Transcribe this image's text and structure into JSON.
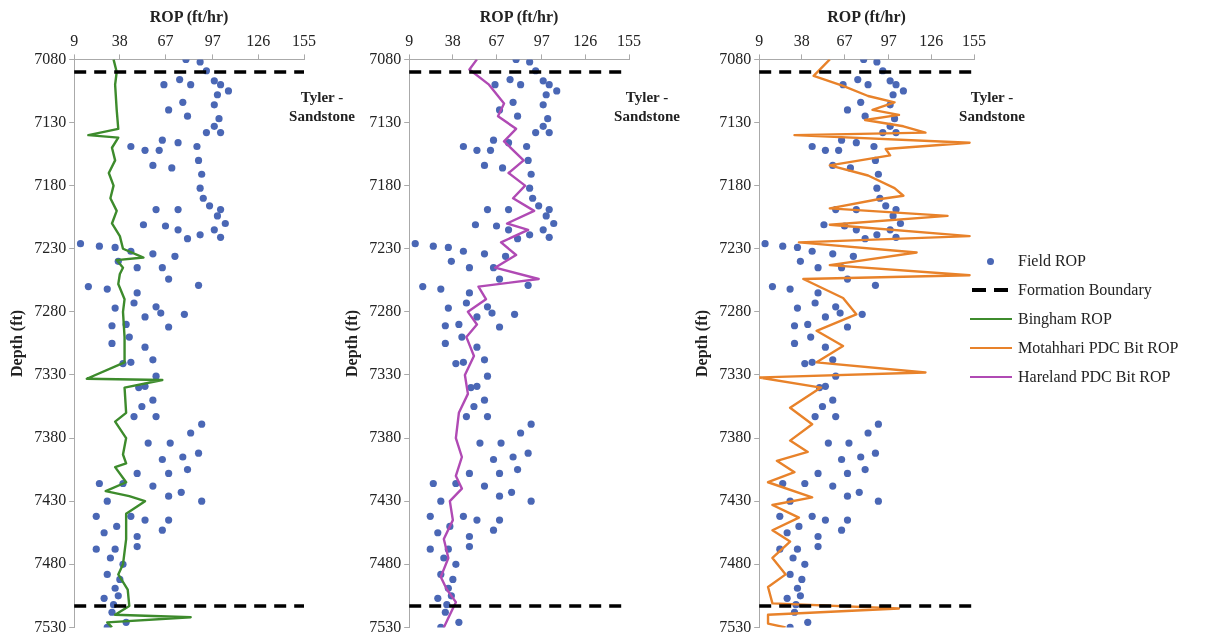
{
  "chart_data": [
    {
      "type": "scatter",
      "xlabel": "ROP (ft/hr)",
      "ylabel": "Depth (ft)",
      "xlim": [
        9,
        155
      ],
      "xticks": [
        9,
        38,
        67,
        97,
        126,
        155
      ],
      "ylim": [
        7530,
        7080
      ],
      "yticks": [
        7080,
        7130,
        7180,
        7230,
        7280,
        7330,
        7380,
        7430,
        7480,
        7530
      ],
      "grid": false,
      "legend": "right",
      "annotations": [
        "Tyler - Sandstone"
      ],
      "ref_lines": [
        {
          "axis": "y",
          "value": 7090,
          "color": "#000000",
          "line_style": "dashed"
        },
        {
          "axis": "y",
          "value": 7513,
          "color": "#000000",
          "line_style": "dashed"
        }
      ],
      "series": [
        {
          "name": "Field ROP",
          "type": "scatter",
          "marker": "circle",
          "color": "#4a67b5",
          "x": [
            80,
            89,
            93,
            98,
            102,
            107,
            100,
            98,
            101,
            98,
            102,
            93,
            87,
            88,
            90,
            89,
            91,
            95,
            102,
            105,
            98,
            102,
            100,
            66,
            76,
            69,
            81,
            78,
            83,
            65,
            75,
            45,
            54,
            63,
            59,
            71,
            61,
            75,
            53,
            67,
            75,
            89,
            81,
            13,
            25,
            35,
            45,
            59,
            73,
            49,
            65,
            69,
            18,
            30,
            49,
            88,
            47,
            61,
            35,
            79,
            33,
            54,
            69,
            64,
            33,
            54,
            59,
            40,
            61,
            54,
            59,
            61,
            47,
            90,
            83,
            70,
            56,
            88,
            78,
            65,
            81,
            69,
            49,
            25,
            40,
            59,
            69,
            77,
            90,
            23,
            45,
            54,
            69,
            28,
            49,
            65,
            23,
            35,
            49,
            40,
            30,
            35,
            28,
            37,
            33,
            42,
            37,
            42,
            45,
            50,
            52,
            44,
            30,
            36,
            32,
            38,
            34,
            30
          ],
          "values": [
            7080,
            7082,
            7089,
            7097,
            7100,
            7105,
            7108,
            7116,
            7127,
            7133,
            7138,
            7138,
            7149,
            7160,
            7171,
            7182,
            7190,
            7196,
            7199,
            7210,
            7215,
            7221,
            7204,
            7100,
            7096,
            7120,
            7125,
            7114,
            7100,
            7144,
            7146,
            7149,
            7152,
            7152,
            7164,
            7166,
            7199,
            7199,
            7211,
            7212,
            7215,
            7219,
            7222,
            7226,
            7228,
            7229,
            7232,
            7234,
            7236,
            7245,
            7245,
            7254,
            7260,
            7262,
            7265,
            7259,
            7273,
            7276,
            7277,
            7282,
            7291,
            7284,
            7292,
            7281,
            7305,
            7308,
            7318,
            7321,
            7331,
            7339,
            7350,
            7363,
            7363,
            7369,
            7376,
            7384,
            7384,
            7392,
            7395,
            7397,
            7405,
            7408,
            7408,
            7416,
            7416,
            7418,
            7426,
            7423,
            7430,
            7442,
            7442,
            7445,
            7445,
            7455,
            7458,
            7453,
            7468,
            7468,
            7466,
            7480,
            7488,
            7499,
            7507,
            7505,
            7518,
            7526,
            7240,
            7290,
            7320,
            7340,
            7355,
            7300,
            7430,
            7450,
            7475,
            7492,
            7512,
            7530
          ]
        },
        {
          "name": "Bingham ROP",
          "type": "line",
          "marker": "none",
          "color": "#3d8b2c",
          "x": [
            34,
            36,
            35,
            36,
            37,
            18,
            37,
            33,
            35,
            31,
            34,
            32,
            36,
            33,
            38,
            40,
            53,
            36,
            40,
            38,
            37,
            41,
            40,
            41,
            41,
            17,
            65,
            41,
            42,
            35,
            42,
            40,
            42,
            35,
            42,
            29,
            44,
            54,
            42,
            42,
            40,
            37,
            43,
            44,
            35,
            83,
            30,
            33
          ],
          "values": [
            7080,
            7090,
            7100,
            7120,
            7135,
            7140,
            7142,
            7150,
            7160,
            7170,
            7180,
            7190,
            7200,
            7210,
            7220,
            7230,
            7237,
            7239,
            7245,
            7250,
            7258,
            7270,
            7280,
            7300,
            7320,
            7333,
            7334,
            7340,
            7360,
            7367,
            7380,
            7393,
            7400,
            7403,
            7415,
            7422,
            7426,
            7430,
            7440,
            7460,
            7480,
            7488,
            7500,
            7513,
            7520,
            7522,
            7526,
            7530
          ]
        }
      ]
    },
    {
      "type": "scatter",
      "xlabel": "ROP (ft/hr)",
      "ylabel": "Depth (ft)",
      "xlim": [
        9,
        155
      ],
      "xticks": [
        9,
        38,
        67,
        97,
        126,
        155
      ],
      "ylim": [
        7530,
        7080
      ],
      "yticks": [
        7080,
        7130,
        7180,
        7230,
        7280,
        7330,
        7380,
        7430,
        7480,
        7530
      ],
      "grid": false,
      "legend": "right",
      "annotations": [
        "Tyler - Sandstone"
      ],
      "ref_lines": [
        {
          "axis": "y",
          "value": 7090,
          "color": "#000000",
          "line_style": "dashed"
        },
        {
          "axis": "y",
          "value": 7513,
          "color": "#000000",
          "line_style": "dashed"
        }
      ],
      "series": [
        {
          "name": "Field ROP",
          "type": "scatter",
          "marker": "circle",
          "color": "#4a67b5",
          "x": [
            80,
            89,
            93,
            98,
            102,
            107,
            100,
            98,
            101,
            98,
            102,
            93,
            87,
            88,
            90,
            89,
            91,
            95,
            102,
            105,
            98,
            102,
            100,
            66,
            76,
            69,
            81,
            78,
            83,
            65,
            75,
            45,
            54,
            63,
            59,
            71,
            61,
            75,
            53,
            67,
            75,
            89,
            81,
            13,
            25,
            35,
            45,
            59,
            73,
            49,
            65,
            69,
            18,
            30,
            49,
            88,
            47,
            61,
            35,
            79,
            33,
            54,
            69,
            64,
            33,
            54,
            59,
            40,
            61,
            54,
            59,
            61,
            47,
            90,
            83,
            70,
            56,
            88,
            78,
            65,
            81,
            69,
            49,
            25,
            40,
            59,
            69,
            77,
            90,
            23,
            45,
            54,
            69,
            28,
            49,
            65,
            23,
            35,
            49,
            40,
            30,
            35,
            28,
            37,
            33,
            42,
            37,
            42,
            45,
            50,
            52,
            44,
            30,
            36,
            32,
            38,
            34,
            30
          ],
          "values": [
            7080,
            7082,
            7089,
            7097,
            7100,
            7105,
            7108,
            7116,
            7127,
            7133,
            7138,
            7138,
            7149,
            7160,
            7171,
            7182,
            7190,
            7196,
            7199,
            7210,
            7215,
            7221,
            7204,
            7100,
            7096,
            7120,
            7125,
            7114,
            7100,
            7144,
            7146,
            7149,
            7152,
            7152,
            7164,
            7166,
            7199,
            7199,
            7211,
            7212,
            7215,
            7219,
            7222,
            7226,
            7228,
            7229,
            7232,
            7234,
            7236,
            7245,
            7245,
            7254,
            7260,
            7262,
            7265,
            7259,
            7273,
            7276,
            7277,
            7282,
            7291,
            7284,
            7292,
            7281,
            7305,
            7308,
            7318,
            7321,
            7331,
            7339,
            7350,
            7363,
            7363,
            7369,
            7376,
            7384,
            7384,
            7392,
            7395,
            7397,
            7405,
            7408,
            7408,
            7416,
            7416,
            7418,
            7426,
            7423,
            7430,
            7442,
            7442,
            7445,
            7445,
            7455,
            7458,
            7453,
            7468,
            7468,
            7466,
            7480,
            7488,
            7499,
            7507,
            7505,
            7518,
            7526,
            7240,
            7290,
            7320,
            7340,
            7355,
            7300,
            7430,
            7450,
            7475,
            7492,
            7512,
            7530
          ]
        },
        {
          "name": "Hareland PDC Bit ROP",
          "type": "line",
          "marker": "none",
          "color": "#b04ab4",
          "x": [
            54,
            49,
            62,
            72,
            68,
            80,
            72,
            85,
            75,
            86,
            78,
            92,
            74,
            88,
            70,
            80,
            66,
            95,
            55,
            60,
            48,
            54,
            47,
            52,
            46,
            48,
            42,
            40,
            44,
            40,
            44,
            36,
            38,
            32,
            35,
            30,
            34,
            40,
            36,
            32
          ],
          "values": [
            7080,
            7088,
            7100,
            7115,
            7125,
            7135,
            7145,
            7160,
            7170,
            7180,
            7190,
            7200,
            7210,
            7215,
            7225,
            7235,
            7245,
            7254,
            7260,
            7270,
            7280,
            7290,
            7300,
            7315,
            7330,
            7345,
            7360,
            7380,
            7395,
            7410,
            7420,
            7430,
            7445,
            7460,
            7475,
            7490,
            7500,
            7510,
            7520,
            7530
          ]
        }
      ]
    },
    {
      "type": "scatter",
      "xlabel": "ROP (ft/hr)",
      "ylabel": "Depth (ft)",
      "xlim": [
        9,
        155
      ],
      "xticks": [
        9,
        38,
        67,
        97,
        126,
        155
      ],
      "ylim": [
        7530,
        7080
      ],
      "yticks": [
        7080,
        7130,
        7180,
        7230,
        7280,
        7330,
        7380,
        7430,
        7480,
        7530
      ],
      "grid": false,
      "legend": "right",
      "annotations": [
        "Tyler - Sandstone"
      ],
      "ref_lines": [
        {
          "axis": "y",
          "value": 7090,
          "color": "#000000",
          "line_style": "dashed",
          "label": "Formation Boundary"
        },
        {
          "axis": "y",
          "value": 7513,
          "color": "#000000",
          "line_style": "dashed"
        }
      ],
      "series": [
        {
          "name": "Field ROP",
          "type": "scatter",
          "marker": "circle",
          "color": "#4a67b5",
          "x": [
            80,
            89,
            93,
            98,
            102,
            107,
            100,
            98,
            101,
            98,
            102,
            93,
            87,
            88,
            90,
            89,
            91,
            95,
            102,
            105,
            98,
            102,
            100,
            66,
            76,
            69,
            81,
            78,
            83,
            65,
            75,
            45,
            54,
            63,
            59,
            71,
            61,
            75,
            53,
            67,
            75,
            89,
            81,
            13,
            25,
            35,
            45,
            59,
            73,
            49,
            65,
            69,
            18,
            30,
            49,
            88,
            47,
            61,
            35,
            79,
            33,
            54,
            69,
            64,
            33,
            54,
            59,
            40,
            61,
            54,
            59,
            61,
            47,
            90,
            83,
            70,
            56,
            88,
            78,
            65,
            81,
            69,
            49,
            25,
            40,
            59,
            69,
            77,
            90,
            23,
            45,
            54,
            69,
            28,
            49,
            65,
            23,
            35,
            49,
            40,
            30,
            35,
            28,
            37,
            33,
            42,
            37,
            42,
            45,
            50,
            52,
            44,
            30,
            36,
            32,
            38,
            34,
            30
          ],
          "values": [
            7080,
            7082,
            7089,
            7097,
            7100,
            7105,
            7108,
            7116,
            7127,
            7133,
            7138,
            7138,
            7149,
            7160,
            7171,
            7182,
            7190,
            7196,
            7199,
            7210,
            7215,
            7221,
            7204,
            7100,
            7096,
            7120,
            7125,
            7114,
            7100,
            7144,
            7146,
            7149,
            7152,
            7152,
            7164,
            7166,
            7199,
            7199,
            7211,
            7212,
            7215,
            7219,
            7222,
            7226,
            7228,
            7229,
            7232,
            7234,
            7236,
            7245,
            7245,
            7254,
            7260,
            7262,
            7265,
            7259,
            7273,
            7276,
            7277,
            7282,
            7291,
            7284,
            7292,
            7281,
            7305,
            7308,
            7318,
            7321,
            7331,
            7339,
            7350,
            7363,
            7363,
            7369,
            7376,
            7384,
            7384,
            7392,
            7395,
            7397,
            7405,
            7408,
            7408,
            7416,
            7416,
            7418,
            7426,
            7423,
            7430,
            7442,
            7442,
            7445,
            7445,
            7455,
            7458,
            7453,
            7468,
            7468,
            7466,
            7480,
            7488,
            7499,
            7507,
            7505,
            7518,
            7526,
            7240,
            7290,
            7320,
            7340,
            7355,
            7300,
            7430,
            7450,
            7475,
            7492,
            7512,
            7530
          ]
        },
        {
          "name": "Motahhari PDC Bit ROP",
          "type": "line",
          "marker": "none",
          "color": "#e8822a",
          "x": [
            57,
            46,
            66,
            83,
            101,
            86,
            104,
            81,
            107,
            122,
            33,
            152,
            95,
            98,
            57,
            83,
            101,
            107,
            89,
            57,
            137,
            57,
            152,
            36,
            116,
            57,
            152,
            39,
            66,
            75,
            48,
            66,
            48,
            122,
            9,
            51,
            30,
            45,
            30,
            42,
            21,
            33,
            15,
            45,
            18,
            36,
            18,
            30,
            18,
            27,
            15,
            18,
            104,
            15,
            15,
            27
          ],
          "values": [
            7080,
            7093,
            7101,
            7109,
            7114,
            7120,
            7124,
            7128,
            7133,
            7138,
            7140,
            7146,
            7151,
            7156,
            7164,
            7172,
            7182,
            7188,
            7191,
            7198,
            7204,
            7211,
            7220,
            7225,
            7233,
            7243,
            7251,
            7254,
            7269,
            7282,
            7295,
            7307,
            7320,
            7328,
            7332,
            7340,
            7356,
            7369,
            7382,
            7391,
            7398,
            7407,
            7415,
            7427,
            7433,
            7443,
            7453,
            7462,
            7475,
            7488,
            7498,
            7511,
            7515,
            7520,
            7527,
            7530
          ]
        }
      ]
    }
  ]
}
